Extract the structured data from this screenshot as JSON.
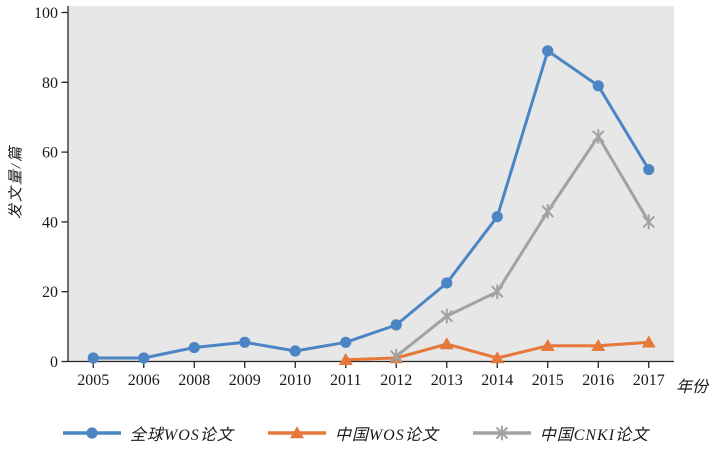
{
  "chart_data": {
    "type": "line",
    "title": "",
    "categories": [
      "2005",
      "2006",
      "2008",
      "2009",
      "2010",
      "2011",
      "2012",
      "2013",
      "2014",
      "2015",
      "2016",
      "2017"
    ],
    "series": [
      {
        "name": "全球WOS论文",
        "color": "#4c85c4",
        "marker": "circle",
        "values": [
          1,
          1,
          4,
          5.5,
          3,
          5.5,
          10.5,
          22.5,
          41.5,
          89,
          79,
          55
        ]
      },
      {
        "name": "中国WOS论文",
        "color": "#e6793a",
        "marker": "triangle",
        "values": [
          null,
          null,
          null,
          null,
          null,
          0.5,
          1,
          5,
          1,
          4.5,
          4.5,
          5.5
        ]
      },
      {
        "name": "中国CNKI论文",
        "color": "#a2a2a2",
        "marker": "asterisk",
        "values": [
          null,
          null,
          null,
          null,
          null,
          null,
          1.5,
          13,
          20,
          43,
          64.5,
          40
        ]
      }
    ],
    "xlabel": "年份",
    "ylabel": "发文量/篇",
    "ylim": [
      0,
      100
    ],
    "yticks": [
      0,
      20,
      40,
      60,
      80,
      100
    ],
    "grid": false,
    "legend_position": "bottom",
    "plot_background": "#e7e7e7",
    "axis_color": "#262626"
  }
}
